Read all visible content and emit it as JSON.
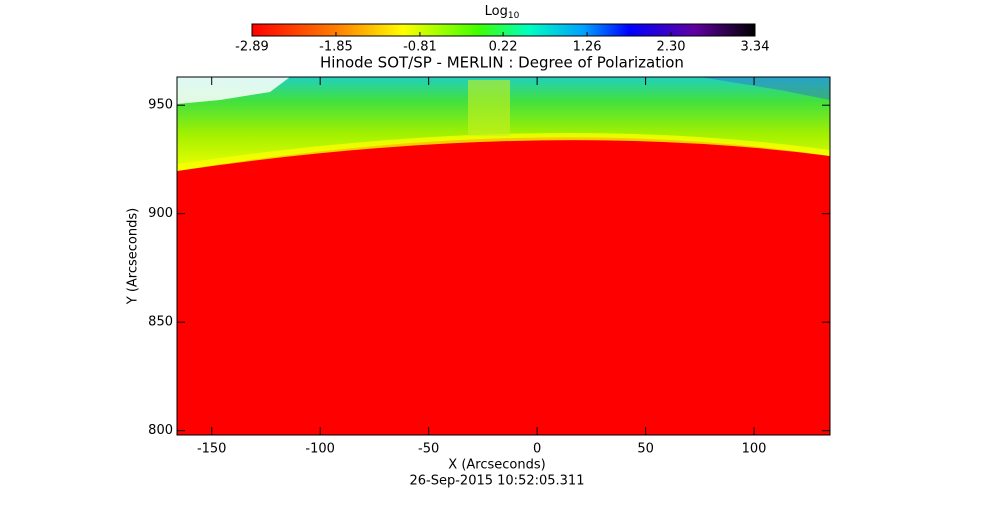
{
  "chart_data": {
    "type": "image",
    "title": "Hinode SOT/SP - MERLIN : Degree of Polarization",
    "x_label": "X (Arcseconds)",
    "y_label": "Y (Arcseconds)",
    "date": "26-Sep-2015 10:52:05.311",
    "colorbar": {
      "label": "Log",
      "label_subscript": "10",
      "lim": [
        -2.89,
        3.34
      ],
      "ticks": [
        -2.89,
        -1.85,
        -0.81,
        0.22,
        1.26,
        {
          "value": 2.3,
          "label": "2.30"
        },
        3.34
      ]
    },
    "xlim": [
      -166,
      135
    ],
    "xticks": [
      -150,
      -100,
      -50,
      0,
      50,
      100
    ],
    "ylim": [
      798,
      963
    ],
    "yticks": [
      800,
      850,
      900,
      950
    ]
  }
}
